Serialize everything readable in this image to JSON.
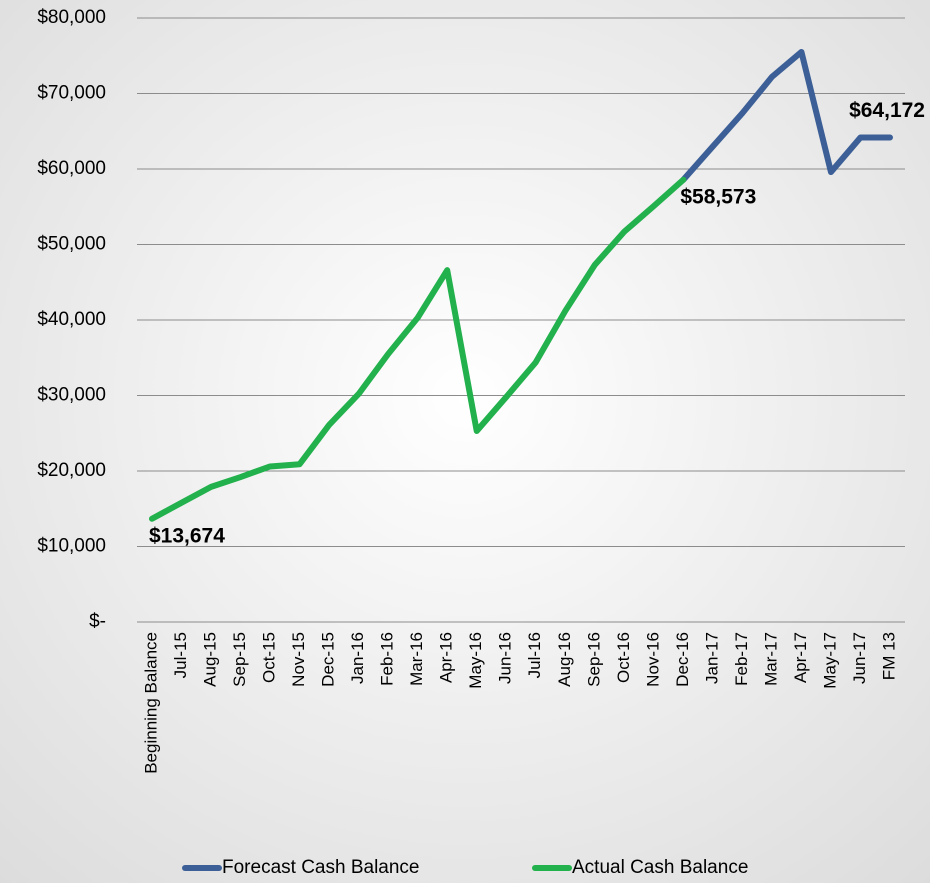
{
  "chart_data": {
    "type": "line",
    "categories": [
      "Beginning Balance",
      "Jul-15",
      "Aug-15",
      "Sep-15",
      "Oct-15",
      "Nov-15",
      "Dec-15",
      "Jan-16",
      "Feb-16",
      "Mar-16",
      "Apr-16",
      "May-16",
      "Jun-16",
      "Jul-16",
      "Aug-16",
      "Sep-16",
      "Oct-16",
      "Nov-16",
      "Dec-16",
      "Jan-17",
      "Feb-17",
      "Mar-17",
      "Apr-17",
      "May-17",
      "Jun-17",
      "FM 13"
    ],
    "series": [
      {
        "name": "Forecast Cash Balance",
        "color": "#3b5f96",
        "values": [
          null,
          null,
          null,
          null,
          null,
          null,
          null,
          null,
          null,
          null,
          null,
          null,
          null,
          null,
          null,
          null,
          null,
          null,
          58573,
          63000,
          67400,
          72200,
          75500,
          59600,
          64172,
          64172
        ],
        "value_labels": [
          null,
          null,
          null,
          null,
          null,
          null,
          null,
          null,
          null,
          null,
          null,
          null,
          null,
          null,
          null,
          null,
          null,
          null,
          null,
          null,
          null,
          null,
          null,
          null,
          null,
          "$64,172"
        ]
      },
      {
        "name": "Actual Cash Balance",
        "color": "#22b14c",
        "values": [
          13674,
          15800,
          17900,
          19200,
          20600,
          20900,
          26100,
          30200,
          35500,
          40300,
          46600,
          25300,
          29800,
          34400,
          41200,
          47300,
          51700,
          55100,
          58573,
          null,
          null,
          null,
          null,
          null,
          null,
          null
        ],
        "value_labels": [
          "$13,674",
          null,
          null,
          null,
          null,
          null,
          null,
          null,
          null,
          null,
          null,
          null,
          null,
          null,
          null,
          null,
          null,
          null,
          "$58,573",
          null,
          null,
          null,
          null,
          null,
          null,
          null
        ]
      }
    ],
    "ylim": [
      0,
      80000
    ],
    "yticks": [
      {
        "value": 0,
        "label": "$-"
      },
      {
        "value": 10000,
        "label": "$10,000"
      },
      {
        "value": 20000,
        "label": "$20,000"
      },
      {
        "value": 30000,
        "label": "$30,000"
      },
      {
        "value": 40000,
        "label": "$40,000"
      },
      {
        "value": 50000,
        "label": "$50,000"
      },
      {
        "value": 60000,
        "label": "$60,000"
      },
      {
        "value": 70000,
        "label": "$70,000"
      },
      {
        "value": 80000,
        "label": "$80,000"
      }
    ],
    "grid": true,
    "legend": "bottom"
  }
}
